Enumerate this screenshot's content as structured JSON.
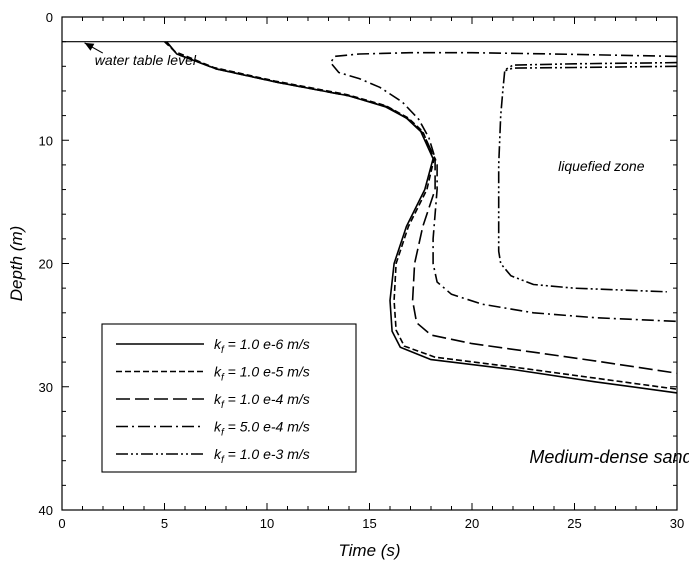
{
  "chart_data": {
    "type": "line",
    "title": "",
    "xlabel": "Time (s)",
    "ylabel": "Depth (m)",
    "xlim": [
      0,
      30
    ],
    "ylim": [
      0,
      40
    ],
    "y_inverted": true,
    "x_ticks": [
      0,
      5,
      10,
      15,
      20,
      25,
      30
    ],
    "y_ticks": [
      0,
      10,
      20,
      30,
      40
    ],
    "grid": false,
    "legend_position": "bottom-left",
    "reference_lines": [
      {
        "name": "water-table",
        "y": 2
      }
    ],
    "annotations": [
      {
        "name": "water-table-label",
        "text": "water table level",
        "x": 1.6,
        "y": 3.9,
        "arrow_to": [
          1.1,
          2.1
        ]
      },
      {
        "name": "liquefied-zone-label",
        "text": "liquefied zone",
        "x": 24.2,
        "y": 12.5
      },
      {
        "name": "soil-type-label",
        "text": "Medium-dense sand",
        "x": 22.8,
        "y": 36.2
      }
    ],
    "series": [
      {
        "name": "k_f = 1.0 e-6 m/s",
        "legend_label": {
          "pre": "k",
          "sub": "f",
          "post": " = 1.0 e-6 m/s"
        },
        "dash": "none",
        "points": [
          [
            5.1,
            2.0
          ],
          [
            5.6,
            3.0
          ],
          [
            7.5,
            4.2
          ],
          [
            10.5,
            5.3
          ],
          [
            14.0,
            6.4
          ],
          [
            15.8,
            7.3
          ],
          [
            16.8,
            8.2
          ],
          [
            17.5,
            9.3
          ],
          [
            18.1,
            11.5
          ],
          [
            17.7,
            14.0
          ],
          [
            16.8,
            17.0
          ],
          [
            16.2,
            20.0
          ],
          [
            16.0,
            23.0
          ],
          [
            16.1,
            25.5
          ],
          [
            16.5,
            26.8
          ],
          [
            18.0,
            27.8
          ],
          [
            22.0,
            28.6
          ],
          [
            26.0,
            29.6
          ],
          [
            30.0,
            30.5
          ]
        ]
      },
      {
        "name": "k_f = 1.0 e-5 m/s",
        "legend_label": {
          "pre": "k",
          "sub": "f",
          "post": " = 1.0 e-5 m/s"
        },
        "dash": "6,3",
        "points": [
          [
            5.0,
            2.0
          ],
          [
            5.5,
            2.8
          ],
          [
            7.4,
            4.1
          ],
          [
            10.4,
            5.2
          ],
          [
            13.9,
            6.3
          ],
          [
            15.8,
            7.2
          ],
          [
            16.9,
            8.2
          ],
          [
            17.6,
            9.3
          ],
          [
            18.15,
            11.5
          ],
          [
            17.8,
            14.0
          ],
          [
            16.9,
            17.0
          ],
          [
            16.3,
            20.0
          ],
          [
            16.2,
            23.0
          ],
          [
            16.3,
            25.4
          ],
          [
            16.7,
            26.7
          ],
          [
            18.2,
            27.6
          ],
          [
            22.0,
            28.4
          ],
          [
            26.0,
            29.3
          ],
          [
            30.0,
            30.2
          ]
        ]
      },
      {
        "name": "k_f = 1.0 e-4 m/s",
        "legend_label": {
          "pre": "k",
          "sub": "f",
          "post": " = 1.0 e-4 m/s"
        },
        "dash": "14,5",
        "points": [
          [
            5.1,
            2.0
          ],
          [
            5.6,
            3.0
          ],
          [
            7.5,
            4.2
          ],
          [
            10.5,
            5.3
          ],
          [
            14.0,
            6.4
          ],
          [
            15.9,
            7.3
          ],
          [
            16.9,
            8.3
          ],
          [
            17.6,
            9.4
          ],
          [
            18.2,
            11.5
          ],
          [
            18.2,
            14.0
          ],
          [
            17.6,
            17.0
          ],
          [
            17.2,
            20.0
          ],
          [
            17.1,
            23.0
          ],
          [
            17.3,
            24.8
          ],
          [
            18.0,
            25.8
          ],
          [
            20.0,
            26.5
          ],
          [
            23.0,
            27.2
          ],
          [
            26.0,
            27.9
          ],
          [
            30.0,
            28.9
          ]
        ]
      },
      {
        "name": "k_f = 5.0 e-4 m/s",
        "legend_label": {
          "pre": "k",
          "sub": "f",
          "post": " = 5.0 e-4 m/s"
        },
        "dash": "12,4,2,4",
        "points": [
          [
            30.0,
            3.2
          ],
          [
            24.0,
            3.0
          ],
          [
            20.0,
            2.9
          ],
          [
            17.0,
            2.9
          ],
          [
            14.5,
            3.0
          ],
          [
            13.3,
            3.2
          ],
          [
            13.1,
            3.7
          ],
          [
            13.5,
            4.5
          ],
          [
            14.5,
            5.0
          ],
          [
            15.5,
            5.7
          ],
          [
            16.6,
            6.9
          ],
          [
            17.4,
            8.3
          ],
          [
            17.9,
            9.8
          ],
          [
            18.3,
            12.0
          ],
          [
            18.3,
            14.0
          ],
          [
            18.2,
            16.0
          ],
          [
            18.1,
            18.0
          ],
          [
            18.1,
            20.0
          ],
          [
            18.3,
            21.5
          ],
          [
            19.0,
            22.5
          ],
          [
            20.5,
            23.3
          ],
          [
            23.0,
            24.0
          ],
          [
            26.0,
            24.4
          ],
          [
            30.0,
            24.7
          ]
        ]
      },
      {
        "name": "k_f = 1.0 e-3 m/s",
        "legend_label": {
          "pre": "k",
          "sub": "f",
          "post": " = 1.0 e-3 m/s"
        },
        "dash": "12,3,2,3,2,3",
        "points": [
          [
            30.0,
            3.7
          ],
          [
            25.0,
            3.8
          ],
          [
            22.0,
            3.9
          ],
          [
            21.6,
            4.3
          ],
          [
            21.5,
            6.0
          ],
          [
            21.4,
            8.0
          ],
          [
            21.3,
            12.0
          ],
          [
            21.3,
            17.0
          ],
          [
            21.3,
            19.0
          ],
          [
            21.4,
            20.0
          ],
          [
            21.9,
            21.0
          ],
          [
            23.0,
            21.7
          ],
          [
            25.0,
            22.0
          ],
          [
            28.0,
            22.2
          ],
          [
            29.5,
            22.3
          ]
        ]
      },
      {
        "name": "k_f = 1.0 e-3 m/s (upper branch)",
        "legend_label": null,
        "dash": "12,3,2,3,2,3",
        "points": [
          [
            30.0,
            4.0
          ],
          [
            25.0,
            4.1
          ],
          [
            22.0,
            4.15
          ],
          [
            21.55,
            4.4
          ]
        ]
      }
    ]
  }
}
